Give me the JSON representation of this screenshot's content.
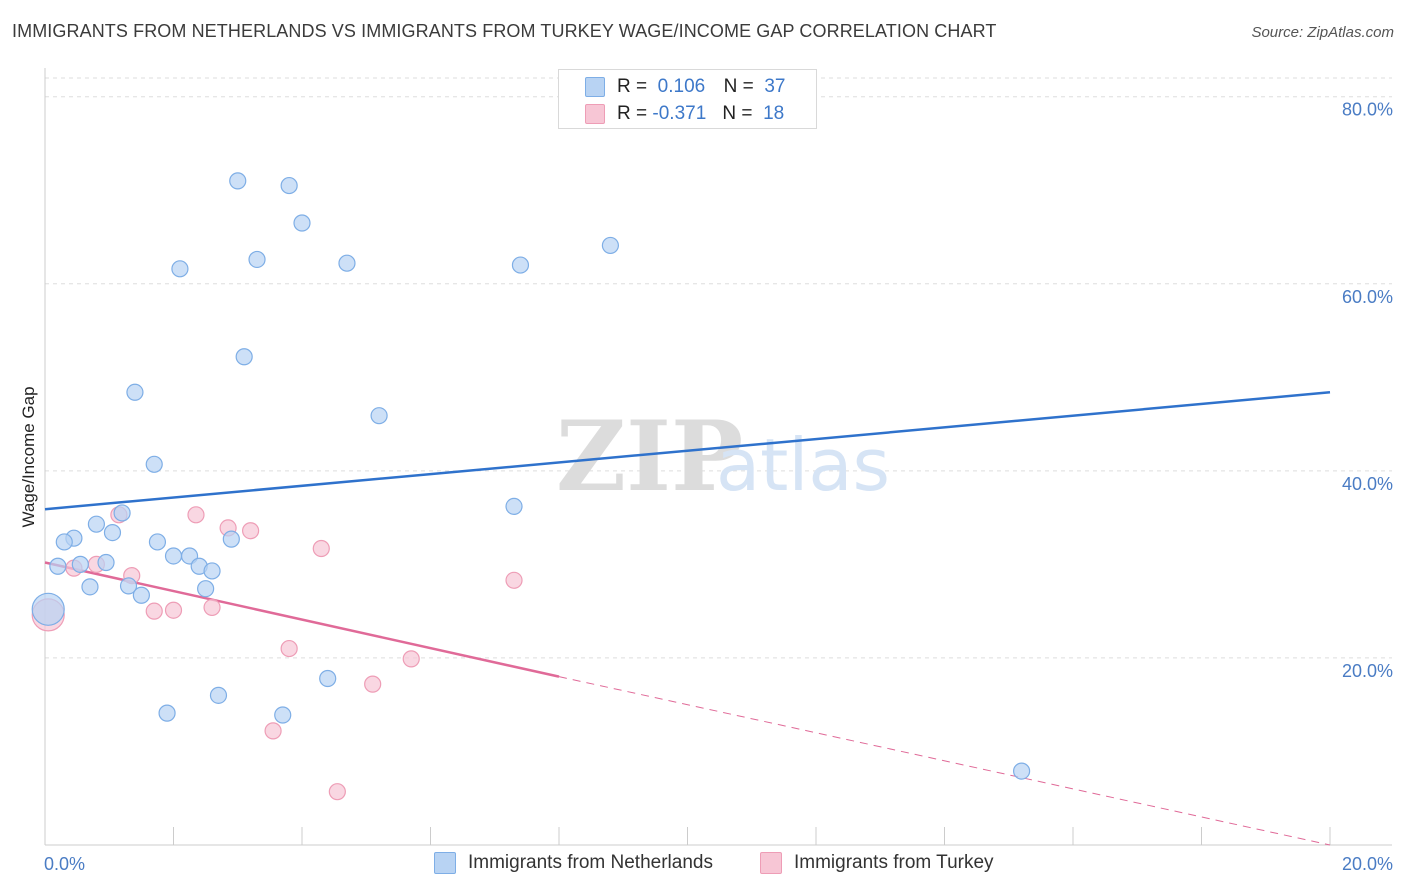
{
  "title": "IMMIGRANTS FROM NETHERLANDS VS IMMIGRANTS FROM TURKEY WAGE/INCOME GAP CORRELATION CHART",
  "source": "Source: ZipAtlas.com",
  "watermark": {
    "zip": "ZIP",
    "atlas": "atlas"
  },
  "legend": {
    "rows": [
      {
        "r_label": "R =",
        "r_value": "0.106",
        "n_label": "N =",
        "n_value": "37"
      },
      {
        "r_label": "R =",
        "r_value": "-0.371",
        "n_label": "N =",
        "n_value": "18"
      }
    ]
  },
  "colors": {
    "blue_fill": "#b8d3f3",
    "blue_stroke": "#7eaee6",
    "blue_line": "#2f72cc",
    "pink_fill": "#f7c6d5",
    "pink_stroke": "#ee9db6",
    "pink_line": "#e06a98",
    "grid": "#dddddd",
    "tick_label": "#4a7cc4"
  },
  "chart_data": {
    "type": "scatter",
    "title": "IMMIGRANTS FROM NETHERLANDS VS IMMIGRANTS FROM TURKEY WAGE/INCOME GAP CORRELATION CHART",
    "xlabel": "",
    "ylabel": "Wage/Income Gap",
    "xlim": [
      0,
      20
    ],
    "ylim": [
      0,
      82
    ],
    "x_tick_labels": [
      "0.0%",
      "20.0%"
    ],
    "y_tick_labels": [
      "20.0%",
      "40.0%",
      "60.0%",
      "80.0%"
    ],
    "y_ticks": [
      20,
      40,
      60,
      80
    ],
    "grid": true,
    "legend_position": "top-center",
    "series": [
      {
        "name": "Immigrants from Netherlands",
        "color": "#7eaee6",
        "points": [
          {
            "x": 3.0,
            "y": 71.0
          },
          {
            "x": 3.8,
            "y": 70.5
          },
          {
            "x": 4.0,
            "y": 66.5
          },
          {
            "x": 3.3,
            "y": 62.6
          },
          {
            "x": 2.1,
            "y": 61.6
          },
          {
            "x": 4.7,
            "y": 62.2
          },
          {
            "x": 7.4,
            "y": 62.0
          },
          {
            "x": 8.8,
            "y": 64.1
          },
          {
            "x": 3.1,
            "y": 52.2
          },
          {
            "x": 1.4,
            "y": 48.4
          },
          {
            "x": 5.2,
            "y": 45.9
          },
          {
            "x": 1.7,
            "y": 40.7
          },
          {
            "x": 7.3,
            "y": 36.2
          },
          {
            "x": 1.2,
            "y": 35.5
          },
          {
            "x": 0.8,
            "y": 34.3
          },
          {
            "x": 1.05,
            "y": 33.4
          },
          {
            "x": 0.45,
            "y": 32.8
          },
          {
            "x": 0.3,
            "y": 32.4
          },
          {
            "x": 1.75,
            "y": 32.4
          },
          {
            "x": 2.9,
            "y": 32.7
          },
          {
            "x": 2.0,
            "y": 30.9
          },
          {
            "x": 2.25,
            "y": 30.9
          },
          {
            "x": 0.95,
            "y": 30.2
          },
          {
            "x": 0.55,
            "y": 30.0
          },
          {
            "x": 0.2,
            "y": 29.8
          },
          {
            "x": 2.4,
            "y": 29.8
          },
          {
            "x": 2.6,
            "y": 29.3
          },
          {
            "x": 0.7,
            "y": 27.6
          },
          {
            "x": 1.3,
            "y": 27.7
          },
          {
            "x": 1.5,
            "y": 26.7
          },
          {
            "x": 2.5,
            "y": 27.4
          },
          {
            "x": 0.05,
            "y": 25.2
          },
          {
            "x": 4.4,
            "y": 17.8
          },
          {
            "x": 2.7,
            "y": 16.0
          },
          {
            "x": 1.9,
            "y": 14.1
          },
          {
            "x": 3.7,
            "y": 13.9
          },
          {
            "x": 15.2,
            "y": 7.9
          }
        ]
      },
      {
        "name": "Immigrants from Turkey",
        "color": "#ee9db6",
        "points": [
          {
            "x": 1.15,
            "y": 35.3
          },
          {
            "x": 2.35,
            "y": 35.3
          },
          {
            "x": 2.85,
            "y": 33.9
          },
          {
            "x": 3.2,
            "y": 33.6
          },
          {
            "x": 4.3,
            "y": 31.7
          },
          {
            "x": 0.8,
            "y": 30.0
          },
          {
            "x": 0.45,
            "y": 29.6
          },
          {
            "x": 1.35,
            "y": 28.8
          },
          {
            "x": 7.3,
            "y": 28.3
          },
          {
            "x": 2.6,
            "y": 25.4
          },
          {
            "x": 1.7,
            "y": 25.0
          },
          {
            "x": 2.0,
            "y": 25.1
          },
          {
            "x": 0.05,
            "y": 24.6
          },
          {
            "x": 3.8,
            "y": 21.0
          },
          {
            "x": 5.7,
            "y": 19.9
          },
          {
            "x": 5.1,
            "y": 17.2
          },
          {
            "x": 3.55,
            "y": 12.2
          },
          {
            "x": 4.55,
            "y": 5.7
          }
        ]
      }
    ],
    "trend_lines": [
      {
        "series": "Immigrants from Netherlands",
        "x": [
          0,
          20
        ],
        "y": [
          35.9,
          48.4
        ],
        "style": "solid"
      },
      {
        "series": "Immigrants from Turkey",
        "x": [
          0,
          8.0
        ],
        "y": [
          30.2,
          18.0
        ],
        "style": "solid"
      },
      {
        "series": "Immigrants from Turkey",
        "x": [
          8.0,
          20
        ],
        "y": [
          18.0,
          0.0
        ],
        "style": "dashed"
      }
    ]
  }
}
